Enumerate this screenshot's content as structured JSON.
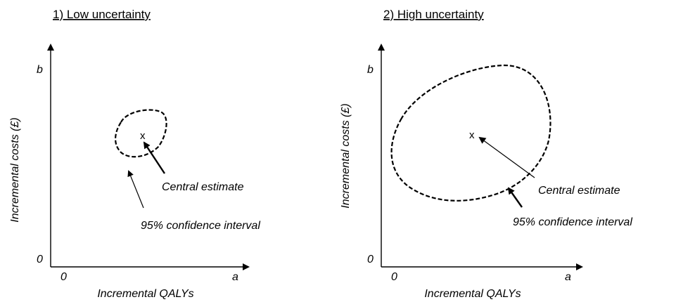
{
  "panels": [
    {
      "title": "1) Low uncertainty",
      "y_axis_label": "Incremental costs (£)",
      "x_axis_label": "Incremental QALYs",
      "y_top_label": "b",
      "y_origin_label": "0",
      "x_origin_label": "0",
      "x_end_label": "a",
      "central_marker": "x",
      "central_label": "Central estimate",
      "ci_label": "95% confidence interval"
    },
    {
      "title": "2) High uncertainty",
      "y_axis_label": "Incremental costs (£)",
      "x_axis_label": "Incremental QALYs",
      "y_top_label": "b",
      "y_origin_label": "0",
      "x_origin_label": "0",
      "x_end_label": "a",
      "central_marker": "x",
      "central_label": "Central estimate",
      "ci_label": "95% confidence interval"
    }
  ]
}
